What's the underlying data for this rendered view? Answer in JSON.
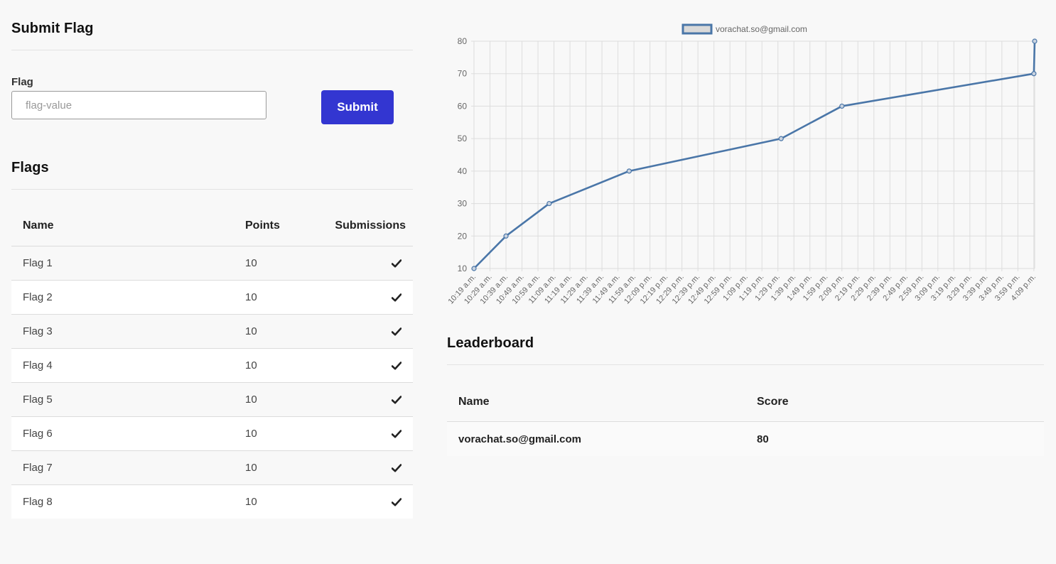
{
  "submit": {
    "title": "Submit Flag",
    "flag_label": "Flag",
    "flag_placeholder": "flag-value",
    "flag_value": "",
    "submit_label": "Submit"
  },
  "flags": {
    "title": "Flags",
    "headers": [
      "Name",
      "Points",
      "Submissions"
    ],
    "rows": [
      {
        "name": "Flag 1",
        "points": "10",
        "submitted": true
      },
      {
        "name": "Flag 2",
        "points": "10",
        "submitted": true
      },
      {
        "name": "Flag 3",
        "points": "10",
        "submitted": true
      },
      {
        "name": "Flag 4",
        "points": "10",
        "submitted": true
      },
      {
        "name": "Flag 5",
        "points": "10",
        "submitted": true
      },
      {
        "name": "Flag 6",
        "points": "10",
        "submitted": true
      },
      {
        "name": "Flag 7",
        "points": "10",
        "submitted": true
      },
      {
        "name": "Flag 8",
        "points": "10",
        "submitted": true
      }
    ],
    "check_icon": "check-icon"
  },
  "leaderboard": {
    "title": "Leaderboard",
    "headers": [
      "Name",
      "Score"
    ],
    "rows": [
      {
        "name": "vorachat.so@gmail.com",
        "score": "80"
      }
    ]
  },
  "colors": {
    "accent": "#3336d1",
    "line": "#4a76a8",
    "legend_fill": "#d9d9d9"
  },
  "chart_data": {
    "type": "line",
    "legend": [
      "vorachat.so@gmail.com"
    ],
    "x": [
      "10:19 a.m.",
      "10:29 a.m.",
      "10:39 a.m.",
      "10:49 a.m.",
      "10:59 a.m.",
      "11:09 a.m.",
      "11:19 a.m.",
      "11:29 a.m.",
      "11:39 a.m.",
      "11:49 a.m.",
      "11:59 a.m.",
      "12:09 p.m.",
      "12:19 p.m.",
      "12:29 p.m.",
      "12:39 p.m.",
      "12:49 p.m.",
      "12:59 p.m.",
      "1:09 p.m.",
      "1:19 p.m.",
      "1:29 p.m.",
      "1:39 p.m.",
      "1:49 p.m.",
      "1:59 p.m.",
      "2:09 p.m.",
      "2:19 p.m.",
      "2:29 p.m.",
      "2:39 p.m.",
      "2:49 p.m.",
      "2:59 p.m.",
      "3:09 p.m.",
      "3:19 p.m.",
      "3:29 p.m.",
      "3:39 p.m.",
      "3:49 p.m.",
      "3:59 p.m.",
      "4:09 p.m."
    ],
    "series": [
      {
        "name": "vorachat.so@gmail.com",
        "points": [
          {
            "t": 0,
            "y": 10
          },
          {
            "t": 20,
            "y": 20
          },
          {
            "t": 47,
            "y": 30
          },
          {
            "t": 97,
            "y": 40
          },
          {
            "t": 192,
            "y": 50
          },
          {
            "t": 230,
            "y": 60
          },
          {
            "t": 350,
            "y": 70
          },
          {
            "t": 350.5,
            "y": 80
          }
        ]
      }
    ],
    "x_unit": "minutes since 10:19 a.m., ticks every 10 min",
    "y_ticks": [
      10,
      20,
      30,
      40,
      50,
      60,
      70,
      80
    ],
    "ylim": [
      10,
      80
    ],
    "xlim": [
      0,
      350.5
    ],
    "grid": true,
    "legend_position": "top"
  }
}
